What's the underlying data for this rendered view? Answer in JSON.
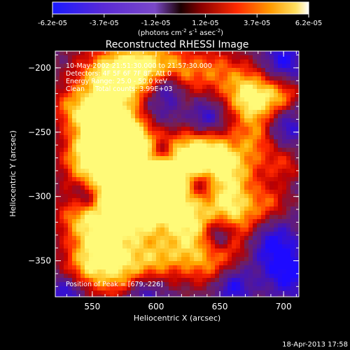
{
  "colorbar": {
    "ticks": [
      "-6.2e-05",
      "-3.7e-05",
      "-1.2e-05",
      "1.2e-05",
      "3.7e-05",
      "6.2e-05"
    ],
    "min": -6.2e-05,
    "max": 6.2e-05,
    "unit_label_parts": {
      "pre": "(photons cm",
      "sup1": "-2",
      "mid1": " s",
      "sup2": "-1",
      "mid2": " asec",
      "sup3": "-2",
      "post": ")"
    }
  },
  "chart_data": {
    "type": "heatmap",
    "title": "Reconstructed RHESSI Image",
    "xlabel": "Heliocentric X (arcsec)",
    "ylabel": "Heliocentric Y (arcsec)",
    "xlim": [
      521,
      712
    ],
    "ylim": [
      -378,
      -187
    ],
    "x_ticks": [
      550,
      600,
      650,
      700
    ],
    "y_ticks": [
      -200,
      -250,
      -300,
      -350
    ],
    "x_tick_labels": [
      "550",
      "600",
      "650",
      "700"
    ],
    "y_tick_labels": [
      "−200",
      "−250",
      "−300",
      "−350"
    ],
    "colormap": "red-temperature with blue/purple negatives",
    "peak_position": [
      679,
      -226
    ]
  },
  "annotations": {
    "time": "10-May-2002 21:51:30.000 to 21:57:30.000",
    "detectors": "Detectors: 4F 5F 6F 7F 8F, Att 0",
    "energy": "Energy Range: 25.0 - 50.0 keV",
    "clean": "Clean     Total counts: 3.99E+03",
    "peak": "Position of Peak = [679,-226]"
  },
  "footer": {
    "timestamp": "18-Apr-2013 17:58"
  }
}
